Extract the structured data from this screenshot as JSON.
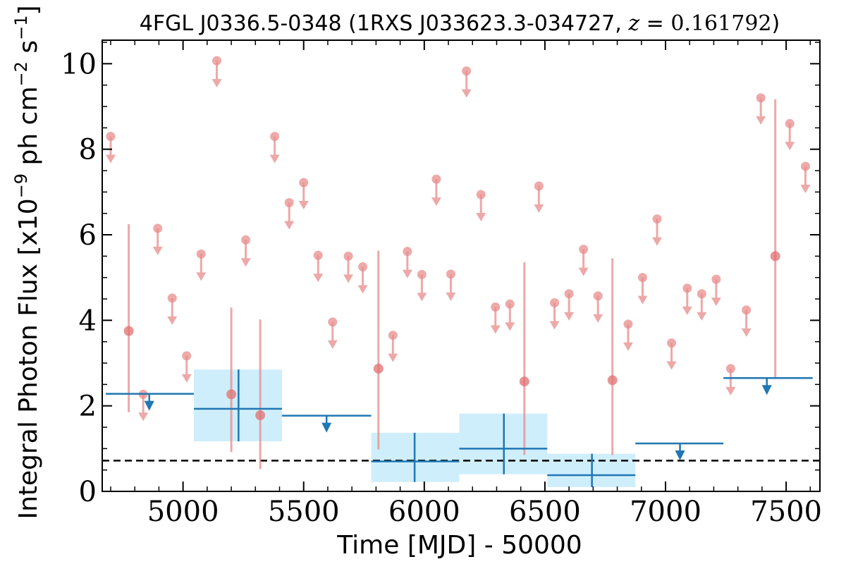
{
  "chart_data": {
    "type": "scatter",
    "title": "4FGL J0336.5-0348 (1RXS J033623.3-034727, z = 0.161792)",
    "title_parts": {
      "main": "4FGL J0336.5-0348 (1RXS J033623.3-034727, ",
      "z_symbol": "z",
      "z_equals": " = ",
      "z_value": "0.161792",
      "close": ")"
    },
    "xlabel": "Time [MJD] - 50000",
    "ylabel": "Integral Photon Flux [x10^-9 ph cm^-2 s^-1]",
    "ylabel_parts": {
      "main": "Integral Photon Flux [x10",
      "exp1": "−9",
      "mid": " ph cm",
      "exp2": "−2",
      "mid2": " s",
      "exp3": "−1",
      "close": "]"
    },
    "xlim": [
      4665,
      7640
    ],
    "ylim": [
      0,
      10.55
    ],
    "x_ticks": [
      5000,
      5500,
      6000,
      6500,
      7000,
      7500
    ],
    "y_ticks": [
      0,
      2,
      4,
      6,
      8,
      10
    ],
    "mean_flux_line": 0.72,
    "colors": {
      "monthly": "#e88c8c",
      "bins": "#1f77b4",
      "bins_band": "#cfeefb",
      "mean_line": "#000000"
    },
    "series": [
      {
        "kind": "monthly_upper_limits",
        "points": [
          {
            "x": 4700,
            "y": 8.3
          },
          {
            "x": 4835,
            "y": 2.27
          },
          {
            "x": 4895,
            "y": 6.15
          },
          {
            "x": 4955,
            "y": 4.52
          },
          {
            "x": 5015,
            "y": 3.17
          },
          {
            "x": 5075,
            "y": 5.55
          },
          {
            "x": 5140,
            "y": 10.07
          },
          {
            "x": 5260,
            "y": 5.88
          },
          {
            "x": 5380,
            "y": 8.3
          },
          {
            "x": 5440,
            "y": 6.75
          },
          {
            "x": 5500,
            "y": 7.22
          },
          {
            "x": 5560,
            "y": 5.52
          },
          {
            "x": 5620,
            "y": 3.96
          },
          {
            "x": 5685,
            "y": 5.5
          },
          {
            "x": 5745,
            "y": 5.25
          },
          {
            "x": 5870,
            "y": 3.65
          },
          {
            "x": 5930,
            "y": 5.61
          },
          {
            "x": 5990,
            "y": 5.07
          },
          {
            "x": 6050,
            "y": 7.3
          },
          {
            "x": 6110,
            "y": 5.08
          },
          {
            "x": 6175,
            "y": 9.83
          },
          {
            "x": 6235,
            "y": 6.94
          },
          {
            "x": 6295,
            "y": 4.31
          },
          {
            "x": 6355,
            "y": 4.38
          },
          {
            "x": 6475,
            "y": 7.14
          },
          {
            "x": 6540,
            "y": 4.41
          },
          {
            "x": 6600,
            "y": 4.62
          },
          {
            "x": 6660,
            "y": 5.66
          },
          {
            "x": 6720,
            "y": 4.57
          },
          {
            "x": 6845,
            "y": 3.91
          },
          {
            "x": 6905,
            "y": 5.0
          },
          {
            "x": 6965,
            "y": 6.37
          },
          {
            "x": 7025,
            "y": 3.47
          },
          {
            "x": 7090,
            "y": 4.75
          },
          {
            "x": 7150,
            "y": 4.62
          },
          {
            "x": 7210,
            "y": 4.96
          },
          {
            "x": 7270,
            "y": 2.87
          },
          {
            "x": 7335,
            "y": 4.24
          },
          {
            "x": 7395,
            "y": 9.2
          },
          {
            "x": 7515,
            "y": 8.6
          },
          {
            "x": 7580,
            "y": 7.6
          }
        ]
      },
      {
        "kind": "monthly_detections",
        "points": [
          {
            "x": 4775,
            "y": 3.75,
            "lo": 1.85,
            "hi": 6.25
          },
          {
            "x": 5200,
            "y": 2.27,
            "lo": 0.92,
            "hi": 4.3
          },
          {
            "x": 5320,
            "y": 1.78,
            "lo": 0.52,
            "hi": 4.02
          },
          {
            "x": 5810,
            "y": 2.87,
            "lo": 0.98,
            "hi": 5.63
          },
          {
            "x": 6415,
            "y": 2.57,
            "lo": 0.85,
            "hi": 5.36
          },
          {
            "x": 6780,
            "y": 2.6,
            "lo": 0.85,
            "hi": 5.45
          },
          {
            "x": 7455,
            "y": 5.5,
            "lo": 2.65,
            "hi": 9.17
          }
        ]
      },
      {
        "kind": "binned_detections",
        "bins": [
          {
            "x0": 5045,
            "x1": 5410,
            "xc": 5230,
            "y": 1.93,
            "lo": 1.17,
            "hi": 2.85
          },
          {
            "x0": 5780,
            "x1": 6145,
            "xc": 5960,
            "y": 0.7,
            "lo": 0.22,
            "hi": 1.37
          },
          {
            "x0": 6145,
            "x1": 6510,
            "xc": 6330,
            "y": 1.0,
            "lo": 0.4,
            "hi": 1.82
          },
          {
            "x0": 6510,
            "x1": 6875,
            "xc": 6695,
            "y": 0.38,
            "lo": 0.1,
            "hi": 0.88
          }
        ]
      },
      {
        "kind": "binned_upper_limits",
        "bins": [
          {
            "x0": 4680,
            "x1": 5045,
            "xc": 4860,
            "y": 2.28
          },
          {
            "x0": 5410,
            "x1": 5780,
            "xc": 5595,
            "y": 1.77
          },
          {
            "x0": 6875,
            "x1": 7240,
            "xc": 7060,
            "y": 1.12
          },
          {
            "x0": 7240,
            "x1": 7610,
            "xc": 7420,
            "y": 2.65
          }
        ]
      }
    ]
  }
}
